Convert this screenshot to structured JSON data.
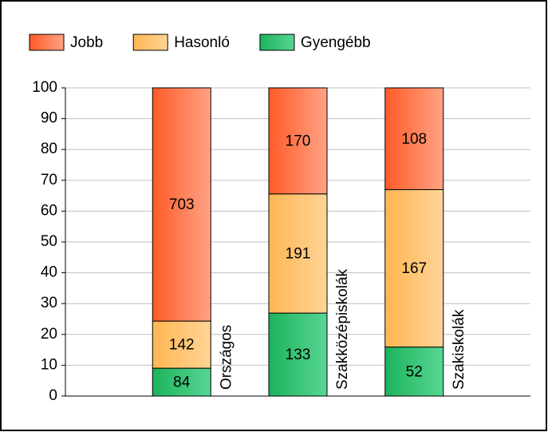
{
  "chart_data": {
    "type": "stacked_bar_100",
    "categories": [
      "Országos",
      "Szakközépiskolák",
      "Szakiskolák"
    ],
    "series": [
      {
        "name": "Gyengébb",
        "color": [
          "#1cb35c",
          "#58d694"
        ],
        "values": [
          84,
          133,
          52
        ]
      },
      {
        "name": "Hasonló",
        "color": [
          "#ffb653",
          "#ffd496"
        ],
        "values": [
          142,
          191,
          167
        ]
      },
      {
        "name": "Jobb",
        "color": [
          "#ff5a28",
          "#ffa385"
        ],
        "values": [
          703,
          170,
          108
        ]
      }
    ],
    "legend_order": [
      2,
      1,
      0
    ],
    "legend": "top",
    "ylim": [
      0,
      100
    ],
    "yticks": [
      0,
      10,
      20,
      30,
      40,
      50,
      60,
      70,
      80,
      90,
      100
    ],
    "grid": true
  }
}
